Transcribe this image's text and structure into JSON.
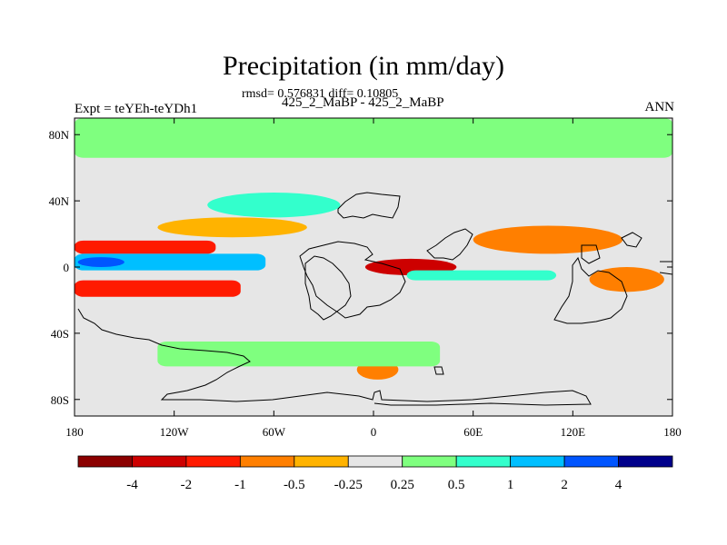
{
  "title": "Precipitation (in mm/day)",
  "stats_line": "rmsd= 0.576831 diff= 0.10805",
  "subtitle": "425_2_MaBP - 425_2_MaBP",
  "left_label": "Expt = teYEh-teYDh1",
  "right_label": "ANN",
  "chart_data": {
    "type": "contour-map",
    "variable": "Precipitation difference",
    "units": "mm/day",
    "x": {
      "range": [
        -180,
        180
      ],
      "ticks": [
        -180,
        -120,
        -60,
        0,
        60,
        120,
        180
      ],
      "tick_labels": [
        "180",
        "120W",
        "60W",
        "0",
        "60E",
        "120E",
        "180"
      ]
    },
    "y": {
      "range": [
        -90,
        90
      ],
      "ticks": [
        80,
        40,
        0,
        -40,
        -80
      ],
      "tick_labels": [
        "80N",
        "40N",
        "0",
        "40S",
        "80S"
      ]
    },
    "colorbar": {
      "colors": [
        "#8b0000",
        "#cd0000",
        "#ff1a00",
        "#ff7f00",
        "#ffb300",
        "#e6e6e6",
        "#7fff7f",
        "#33ffcc",
        "#00bfff",
        "#0055ff",
        "#00008b"
      ],
      "levels": [
        -4,
        -2,
        -1,
        -0.5,
        -0.25,
        0.25,
        0.5,
        1,
        2,
        4
      ],
      "labels": [
        "-4",
        "-2",
        "-1",
        "-0.5",
        "-0.25",
        "0.25",
        "0.5",
        "1",
        "2",
        "4"
      ]
    },
    "features": [
      {
        "name": "north-polar-band",
        "lon": [
          -180,
          180
        ],
        "lat": [
          66,
          90
        ],
        "value": 0.3
      },
      {
        "name": "south-polar-band",
        "lon": [
          -180,
          180
        ],
        "lat": [
          -90,
          -70
        ],
        "value": 0.0
      },
      {
        "name": "pacific-north-dry-band",
        "lon": [
          -180,
          -95
        ],
        "lat": [
          8,
          16
        ],
        "value": -1.5
      },
      {
        "name": "pacific-equatorial-wet-band",
        "lon": [
          -180,
          -65
        ],
        "lat": [
          -2,
          8
        ],
        "value": 1.5
      },
      {
        "name": "pacific-equatorial-core",
        "lon": [
          -178,
          -150
        ],
        "lat": [
          0,
          6
        ],
        "value": 2.5
      },
      {
        "name": "pacific-south-dry-band",
        "lon": [
          -180,
          -80
        ],
        "lat": [
          -18,
          -8
        ],
        "value": -2.0
      },
      {
        "name": "north-atlantic-wet",
        "lon": [
          -100,
          -20
        ],
        "lat": [
          30,
          45
        ],
        "value": 0.8
      },
      {
        "name": "subtropical-atlantic-dry",
        "lon": [
          -130,
          -40
        ],
        "lat": [
          18,
          30
        ],
        "value": -0.4
      },
      {
        "name": "africa-dry-core",
        "lon": [
          -5,
          50
        ],
        "lat": [
          -5,
          5
        ],
        "value": -3.0
      },
      {
        "name": "indian-ocean-wet-band",
        "lon": [
          20,
          110
        ],
        "lat": [
          -8,
          -2
        ],
        "value": 0.6
      },
      {
        "name": "south-atlantic-dry-spot",
        "lon": [
          -10,
          15
        ],
        "lat": [
          -68,
          -56
        ],
        "value": -0.6
      },
      {
        "name": "west-pacific-dry",
        "lon": [
          130,
          175
        ],
        "lat": [
          -15,
          0
        ],
        "value": -0.8
      },
      {
        "name": "east-asia-dry",
        "lon": [
          60,
          150
        ],
        "lat": [
          8,
          25
        ],
        "value": -0.7
      },
      {
        "name": "southern-ocean-wet-band",
        "lon": [
          -130,
          40
        ],
        "lat": [
          -60,
          -45
        ],
        "value": 0.4
      }
    ]
  }
}
